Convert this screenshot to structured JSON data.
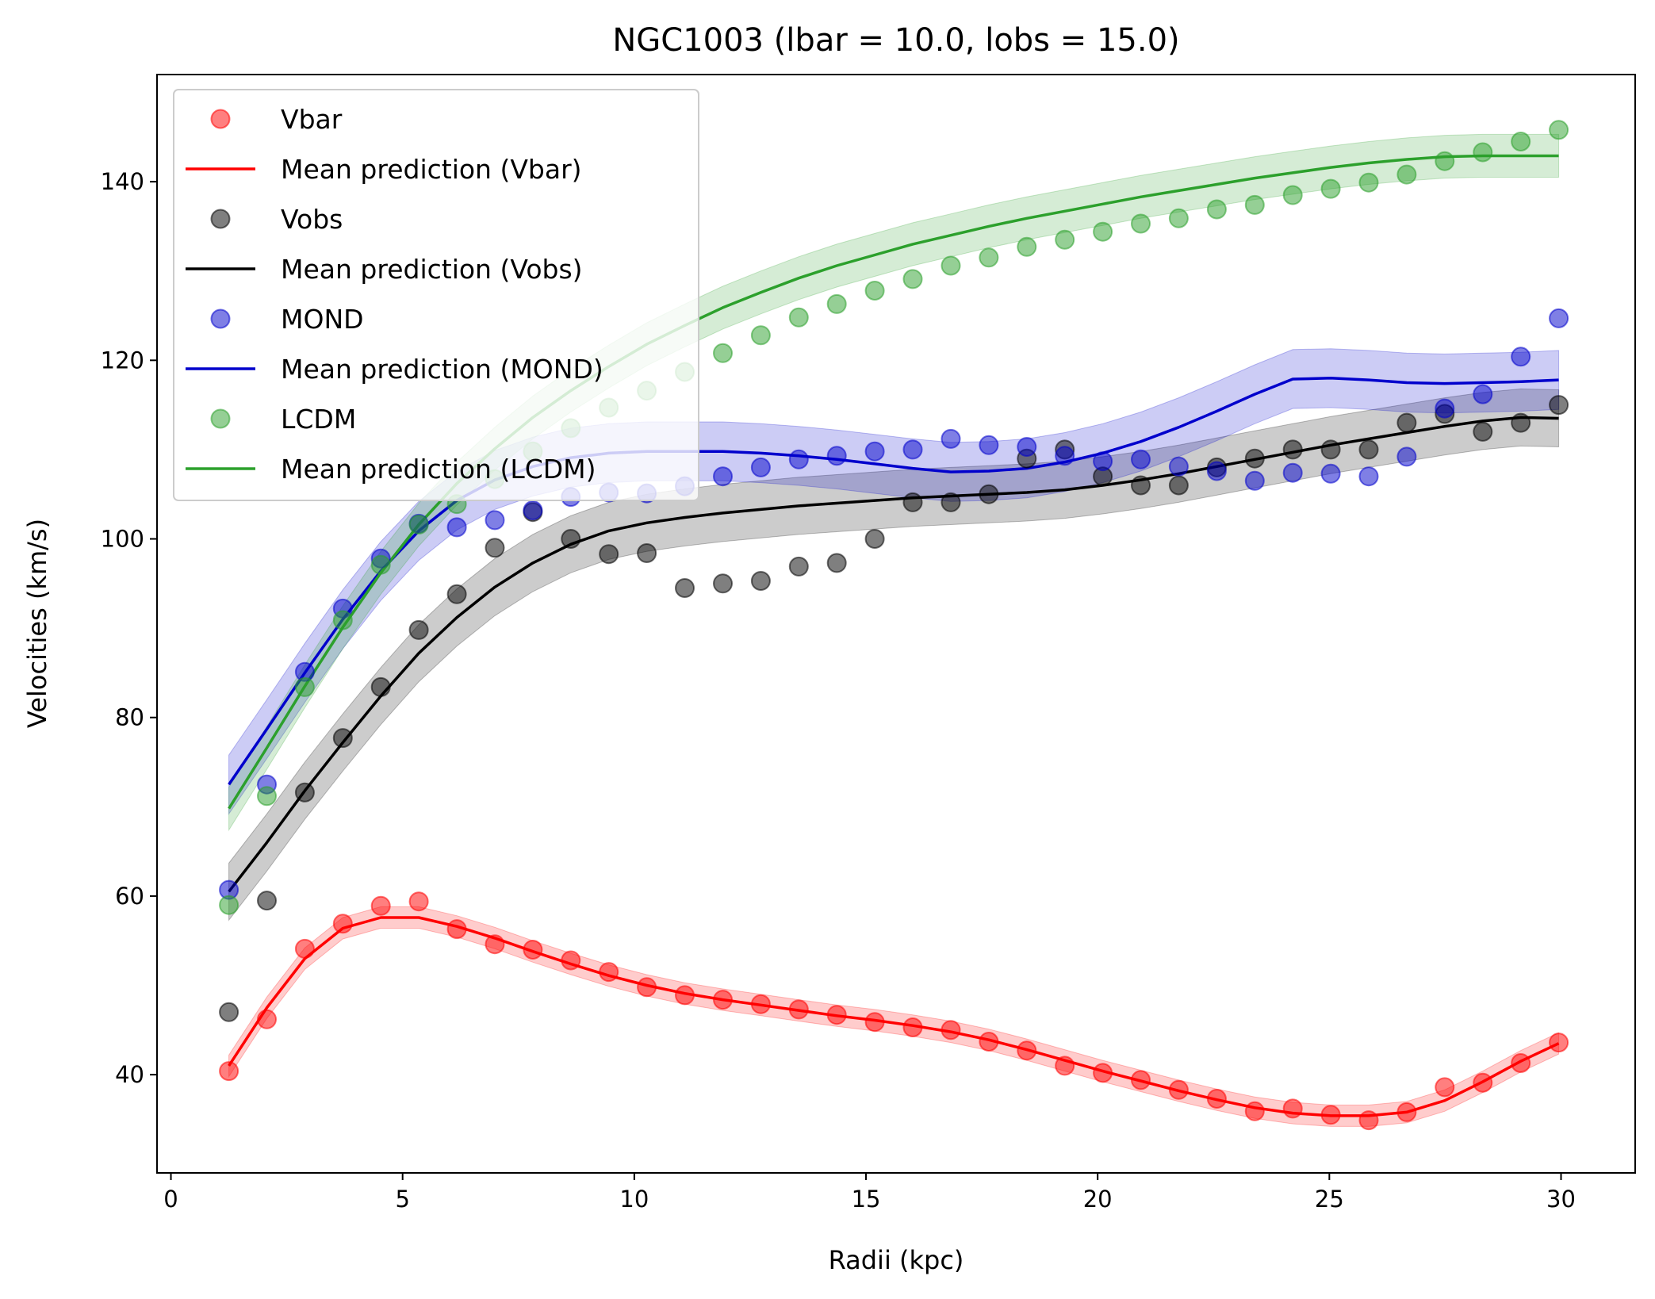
{
  "chart_data": {
    "type": "scatter",
    "title": "NGC1003 (lbar = 10.0, lobs = 15.0)",
    "xlabel": "Radii (kpc)",
    "ylabel": "Velocities (km/s)",
    "xlim": [
      -0.3,
      31.6
    ],
    "ylim": [
      29,
      152
    ],
    "xticks": [
      0,
      5,
      10,
      15,
      20,
      25,
      30
    ],
    "yticks": [
      40,
      60,
      80,
      100,
      120,
      140
    ],
    "grid": false,
    "legend_position": "upper-left",
    "x": [
      1.25,
      2.07,
      2.89,
      3.71,
      4.53,
      5.35,
      6.17,
      6.99,
      7.81,
      8.63,
      9.45,
      10.27,
      11.09,
      11.91,
      12.73,
      13.55,
      14.37,
      15.19,
      16.01,
      16.83,
      17.65,
      18.47,
      19.29,
      20.11,
      20.93,
      21.75,
      22.57,
      23.39,
      24.21,
      25.03,
      25.85,
      26.67,
      27.49,
      28.31,
      29.13,
      29.95
    ],
    "series": [
      {
        "name": "Vbar",
        "pred_name": "Mean prediction (Vbar)",
        "color": "#ff0000",
        "points": [
          40.4,
          46.2,
          54.1,
          56.9,
          58.9,
          59.4,
          56.3,
          54.6,
          54.0,
          52.8,
          51.5,
          49.8,
          48.9,
          48.4,
          47.9,
          47.3,
          46.7,
          45.9,
          45.3,
          45.0,
          43.7,
          42.7,
          41.0,
          40.2,
          39.4,
          38.3,
          37.3,
          35.9,
          36.2,
          35.5,
          34.9,
          35.8,
          38.6,
          39.1,
          41.3,
          43.6
        ],
        "mean": [
          41.0,
          47.5,
          53.0,
          56.4,
          57.6,
          57.6,
          56.6,
          55.3,
          53.8,
          52.4,
          51.1,
          50.0,
          49.1,
          48.4,
          47.8,
          47.2,
          46.6,
          46.1,
          45.5,
          44.8,
          43.9,
          42.8,
          41.6,
          40.4,
          39.3,
          38.2,
          37.2,
          36.3,
          35.7,
          35.4,
          35.4,
          35.8,
          37.1,
          39.2,
          41.5,
          43.5
        ],
        "band": 1.2
      },
      {
        "name": "Vobs",
        "pred_name": "Mean prediction (Vobs)",
        "color": "#000000",
        "points": [
          47.0,
          59.5,
          71.6,
          77.7,
          83.4,
          89.8,
          93.8,
          99.0,
          103.0,
          100.0,
          98.3,
          98.4,
          94.5,
          95.0,
          95.3,
          96.9,
          97.3,
          100.0,
          104.1,
          104.1,
          105.0,
          109.0,
          110.0,
          107.0,
          106.0,
          106.0,
          108.0,
          109.0,
          110.0,
          110.0,
          110.0,
          113.0,
          114.0,
          112.0,
          113.0,
          115.0
        ],
        "mean": [
          60.5,
          66.0,
          71.8,
          77.2,
          82.4,
          87.2,
          91.2,
          94.6,
          97.3,
          99.4,
          100.9,
          101.8,
          102.4,
          102.9,
          103.3,
          103.7,
          104.0,
          104.3,
          104.6,
          104.8,
          105.0,
          105.2,
          105.5,
          106.0,
          106.6,
          107.3,
          108.1,
          108.9,
          109.7,
          110.5,
          111.2,
          111.9,
          112.6,
          113.2,
          113.6,
          113.5
        ],
        "band": 3.2
      },
      {
        "name": "MOND",
        "pred_name": "Mean prediction (MOND)",
        "color": "#0000cc",
        "points": [
          60.7,
          72.5,
          85.1,
          92.2,
          97.8,
          101.7,
          101.3,
          102.1,
          103.2,
          104.7,
          105.2,
          105.1,
          105.9,
          107.0,
          108.0,
          108.9,
          109.3,
          109.8,
          110.0,
          111.2,
          110.5,
          110.3,
          109.3,
          108.7,
          108.9,
          108.1,
          107.6,
          106.5,
          107.4,
          107.3,
          107.0,
          109.2,
          114.6,
          116.2,
          120.4,
          124.7
        ],
        "mean": [
          72.5,
          78.7,
          85.0,
          91.0,
          96.4,
          100.9,
          104.3,
          106.6,
          108.1,
          109.1,
          109.6,
          109.8,
          109.8,
          109.8,
          109.6,
          109.3,
          108.9,
          108.4,
          107.9,
          107.5,
          107.6,
          107.9,
          108.6,
          109.6,
          110.9,
          112.5,
          114.3,
          116.2,
          117.9,
          118.0,
          117.8,
          117.5,
          117.4,
          117.5,
          117.6,
          117.8
        ],
        "band": 3.3
      },
      {
        "name": "LCDM",
        "pred_name": "Mean prediction (LCDM)",
        "color": "#2ca02c",
        "points": [
          59.0,
          71.2,
          83.4,
          90.9,
          97.1,
          101.6,
          103.9,
          106.7,
          109.8,
          112.4,
          114.7,
          116.6,
          118.7,
          120.8,
          122.8,
          124.8,
          126.3,
          127.8,
          129.1,
          130.6,
          131.5,
          132.7,
          133.5,
          134.4,
          135.3,
          135.9,
          136.9,
          137.4,
          138.5,
          139.2,
          139.9,
          140.8,
          142.3,
          143.3,
          144.5,
          145.8
        ],
        "mean": [
          69.8,
          76.6,
          83.5,
          90.1,
          96.2,
          101.6,
          106.2,
          110.1,
          113.6,
          116.6,
          119.3,
          121.8,
          123.9,
          125.9,
          127.6,
          129.2,
          130.6,
          131.8,
          133.0,
          134.0,
          135.0,
          135.9,
          136.7,
          137.5,
          138.3,
          139.0,
          139.7,
          140.4,
          141.0,
          141.6,
          142.1,
          142.5,
          142.8,
          142.9,
          142.9,
          142.9
        ],
        "band": 2.4
      }
    ]
  }
}
